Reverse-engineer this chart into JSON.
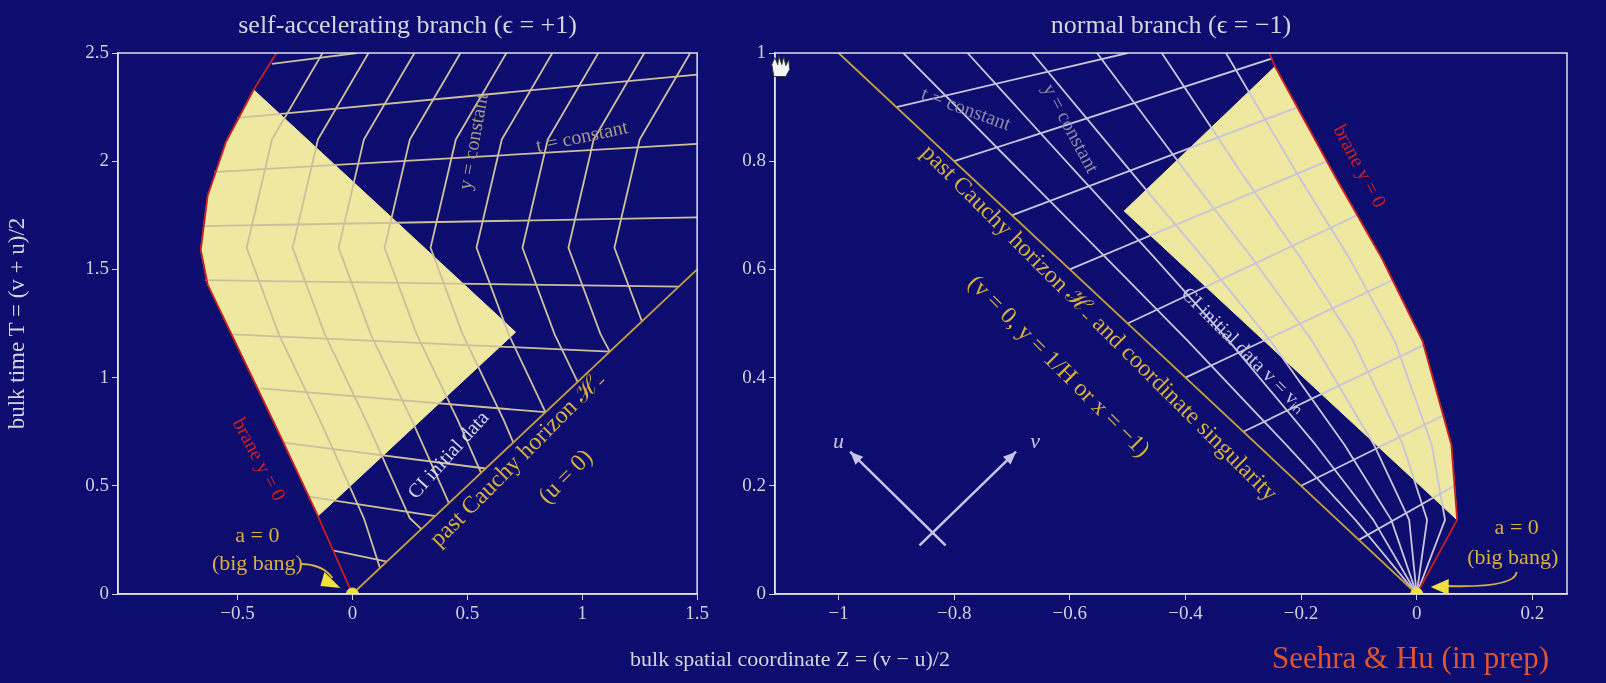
{
  "chart_data": [
    {
      "type": "line",
      "title": "self-accelerating branch (ϵ = +1)",
      "xlabel": "bulk spatial coordinate Z = (v − u)/2",
      "ylabel": "bulk time T = (v + u)/2",
      "xlim": [
        -1.02,
        1.5
      ],
      "xticks": [
        {
          "value": -0.5,
          "label": "−0.5"
        },
        0,
        0.5,
        1,
        1.5
      ],
      "ylim": [
        0,
        2.5
      ],
      "yticks": [
        0,
        0.5,
        1,
        1.5,
        2,
        2.5
      ],
      "grid": false,
      "legend": false,
      "series": [
        {
          "type": "area",
          "color": "#efe8a0",
          "x": [
            -0.15,
            -0.3,
            -0.49,
            -0.63,
            -0.66,
            -0.63,
            -0.55,
            -0.43,
            0.71,
            -0.15
          ],
          "values": [
            0.36,
            0.7,
            1.12,
            1.43,
            1.59,
            1.84,
            2.09,
            2.33,
            1.21,
            0.36
          ]
        },
        {
          "color": "#cdbf9c",
          "x": [
            -0.13,
            -0.35,
            -0.46,
            -0.32,
            -0.14,
            0.05,
            0.12
          ],
          "values": [
            2.5,
            2.1,
            1.6,
            1.2,
            0.8,
            0.35,
            0.12
          ]
        },
        {
          "color": "#cdbf9c",
          "x": [
            0.07,
            -0.15,
            -0.26,
            -0.12,
            0.06,
            0.25,
            0.3
          ],
          "values": [
            2.5,
            2.1,
            1.6,
            1.2,
            0.8,
            0.35,
            0.3
          ]
        },
        {
          "color": "#cdbf9c",
          "x": [
            0.27,
            0.05,
            -0.06,
            0.08,
            0.26,
            0.42
          ],
          "values": [
            2.5,
            2.1,
            1.6,
            1.2,
            0.8,
            0.42
          ]
        },
        {
          "color": "#cdbf9c",
          "x": [
            0.47,
            0.25,
            0.14,
            0.28,
            0.46,
            0.56
          ],
          "values": [
            2.5,
            2.1,
            1.6,
            1.2,
            0.8,
            0.56
          ]
        },
        {
          "color": "#cdbf9c",
          "x": [
            0.67,
            0.45,
            0.34,
            0.48,
            0.66,
            0.7
          ],
          "values": [
            2.5,
            2.1,
            1.6,
            1.2,
            0.8,
            0.7
          ]
        },
        {
          "color": "#cdbf9c",
          "x": [
            0.87,
            0.65,
            0.54,
            0.68,
            0.84
          ],
          "values": [
            2.5,
            2.1,
            1.6,
            1.2,
            0.84
          ]
        },
        {
          "color": "#cdbf9c",
          "x": [
            1.07,
            0.85,
            0.74,
            0.88,
            0.98
          ],
          "values": [
            2.5,
            2.1,
            1.6,
            1.2,
            0.98
          ]
        },
        {
          "color": "#cdbf9c",
          "x": [
            1.27,
            1.05,
            0.94,
            1.08,
            1.12
          ],
          "values": [
            2.5,
            2.1,
            1.6,
            1.2,
            1.12
          ]
        },
        {
          "color": "#cdbf9c",
          "x": [
            1.47,
            1.25,
            1.14,
            1.26
          ],
          "values": [
            2.5,
            2.1,
            1.6,
            1.26
          ]
        },
        {
          "color": "#cdbf9c",
          "x": [
            -0.35,
            0.02
          ],
          "values": [
            2.45,
            2.5
          ]
        },
        {
          "color": "#cdbf9c",
          "x": [
            -0.5,
            1.5
          ],
          "values": [
            2.2,
            2.4
          ]
        },
        {
          "color": "#cdbf9c",
          "x": [
            -0.6,
            1.5
          ],
          "values": [
            1.95,
            2.08
          ]
        },
        {
          "color": "#cdbf9c",
          "x": [
            -0.65,
            1.5
          ],
          "values": [
            1.7,
            1.74
          ]
        },
        {
          "color": "#cdbf9c",
          "x": [
            -0.64,
            1.42
          ],
          "values": [
            1.45,
            1.42
          ]
        },
        {
          "color": "#cdbf9c",
          "x": [
            -0.52,
            1.12
          ],
          "values": [
            1.2,
            1.12
          ]
        },
        {
          "color": "#cdbf9c",
          "x": [
            -0.4,
            0.84
          ],
          "values": [
            0.95,
            0.84
          ]
        },
        {
          "color": "#cdbf9c",
          "x": [
            -0.3,
            0.58
          ],
          "values": [
            0.7,
            0.58
          ]
        },
        {
          "color": "#cdbf9c",
          "x": [
            -0.19,
            0.36
          ],
          "values": [
            0.45,
            0.36
          ]
        },
        {
          "color": "#cdbf9c",
          "x": [
            -0.08,
            0.15
          ],
          "values": [
            0.2,
            0.15
          ]
        },
        {
          "color": "#c81e1e",
          "x": [
            0,
            -0.15,
            -0.3,
            -0.49,
            -0.63,
            -0.66,
            -0.63,
            -0.55,
            -0.43,
            -0.33
          ],
          "values": [
            0,
            0.36,
            0.7,
            1.12,
            1.43,
            1.59,
            1.84,
            2.09,
            2.33,
            2.5
          ]
        },
        {
          "color": "#c8a040",
          "x": [
            0,
            1.5
          ],
          "values": [
            0,
            1.5
          ]
        },
        {
          "type": "scatter",
          "color": "#f0e040",
          "x": [
            0
          ],
          "values": [
            0
          ]
        }
      ],
      "annotations": [
        "t = constant",
        "y = constant",
        "brane y = 0",
        "CI initial data",
        "past Cauchy horizon ℋ₋",
        "(u = 0)",
        "a = 0",
        "(big bang)"
      ]
    },
    {
      "type": "line",
      "title": "normal branch (ϵ = −1)",
      "xlim": [
        -1.11,
        0.26
      ],
      "xticks": [
        {
          "value": -1,
          "label": "−1"
        },
        {
          "value": -0.8,
          "label": "−0.8"
        },
        {
          "value": -0.6,
          "label": "−0.6"
        },
        {
          "value": -0.4,
          "label": "−0.4"
        },
        {
          "value": -0.2,
          "label": "−0.2"
        },
        0,
        0.2
      ],
      "ylim": [
        0,
        1
      ],
      "yticks": [
        0,
        0.2,
        0.4,
        0.6,
        0.8,
        1
      ],
      "grid": false,
      "legend": false,
      "series": [
        {
          "type": "area",
          "color": "#efe8a0",
          "x": [
            0.07,
            0.06,
            0.01,
            -0.06,
            -0.14,
            -0.245,
            -0.506,
            0.07
          ],
          "values": [
            0.137,
            0.276,
            0.468,
            0.62,
            0.77,
            0.975,
            0.708,
            0.137
          ]
        },
        {
          "color": "#c8c4dc",
          "x": [
            0,
            -0.106,
            -0.226,
            -0.396,
            -0.536,
            -0.675,
            -0.888
          ],
          "values": [
            0,
            0.137,
            0.276,
            0.468,
            0.62,
            0.77,
            1.0
          ]
        },
        {
          "color": "#c8c4dc",
          "x": [
            0,
            -0.075,
            -0.175,
            -0.325,
            -0.452,
            -0.581,
            -0.777
          ],
          "values": [
            0,
            0.137,
            0.276,
            0.468,
            0.62,
            0.77,
            1.0
          ]
        },
        {
          "color": "#c8c4dc",
          "x": [
            0,
            -0.044,
            -0.125,
            -0.253,
            -0.368,
            -0.486,
            -0.665
          ],
          "values": [
            0,
            0.137,
            0.276,
            0.468,
            0.62,
            0.77,
            1.0
          ]
        },
        {
          "color": "#c8c4dc",
          "x": [
            0,
            -0.013,
            -0.074,
            -0.181,
            -0.284,
            -0.392,
            -0.553
          ],
          "values": [
            0,
            0.137,
            0.276,
            0.468,
            0.62,
            0.77,
            1.0
          ]
        },
        {
          "color": "#c8c4dc",
          "x": [
            0,
            0.018,
            -0.024,
            -0.11,
            -0.2,
            -0.298,
            -0.441
          ],
          "values": [
            0,
            0.137,
            0.276,
            0.468,
            0.62,
            0.77,
            1.0
          ]
        },
        {
          "color": "#c8c4dc",
          "x": [
            0,
            0.049,
            0.026,
            -0.038,
            -0.116,
            -0.203,
            -0.33
          ],
          "values": [
            0,
            0.137,
            0.276,
            0.468,
            0.62,
            0.77,
            1.0
          ]
        },
        {
          "color": "#c8c4dc",
          "x": [
            -0.1,
            0.065
          ],
          "values": [
            0.1,
            0.2
          ]
        },
        {
          "color": "#c8c4dc",
          "x": [
            -0.2,
            0.046
          ],
          "values": [
            0.2,
            0.33
          ]
        },
        {
          "color": "#c8c4dc",
          "x": [
            -0.3,
            0.012
          ],
          "values": [
            0.3,
            0.46
          ]
        },
        {
          "color": "#c8c4dc",
          "x": [
            -0.4,
            -0.042
          ],
          "values": [
            0.4,
            0.58
          ]
        },
        {
          "color": "#c8c4dc",
          "x": [
            -0.5,
            -0.103
          ],
          "values": [
            0.5,
            0.7
          ]
        },
        {
          "color": "#c8c4dc",
          "x": [
            -0.6,
            -0.155
          ],
          "values": [
            0.6,
            0.8
          ]
        },
        {
          "color": "#c8c4dc",
          "x": [
            -0.7,
            -0.205
          ],
          "values": [
            0.7,
            0.9
          ]
        },
        {
          "color": "#c8c4dc",
          "x": [
            -0.8,
            -0.25
          ],
          "values": [
            0.8,
            0.99
          ]
        },
        {
          "color": "#c8c4dc",
          "x": [
            -0.9,
            -0.5
          ],
          "values": [
            0.9,
            1.0
          ]
        },
        {
          "color": "#c81e1e",
          "x": [
            0,
            0.07,
            0.06,
            0.01,
            -0.06,
            -0.14,
            -0.245,
            -0.255
          ],
          "values": [
            0,
            0.137,
            0.276,
            0.468,
            0.62,
            0.77,
            0.975,
            1.0
          ]
        },
        {
          "color": "#c8a040",
          "x": [
            0,
            -1
          ],
          "values": [
            0,
            1
          ]
        },
        {
          "type": "scatter",
          "color": "#f0e040",
          "x": [
            0
          ],
          "values": [
            0
          ]
        }
      ],
      "annotations": [
        "t = constant",
        "y = constant",
        "brane y = 0",
        "CI initial data v = vᵢₙ",
        "past Cauchy horizon ℋ₋ and coordinate singularity",
        "(v = 0, y = 1/H or x = −1)",
        "a = 0",
        "(big bang)",
        "u",
        "v",
        "Seehra & Hu (in prep)"
      ]
    }
  ]
}
